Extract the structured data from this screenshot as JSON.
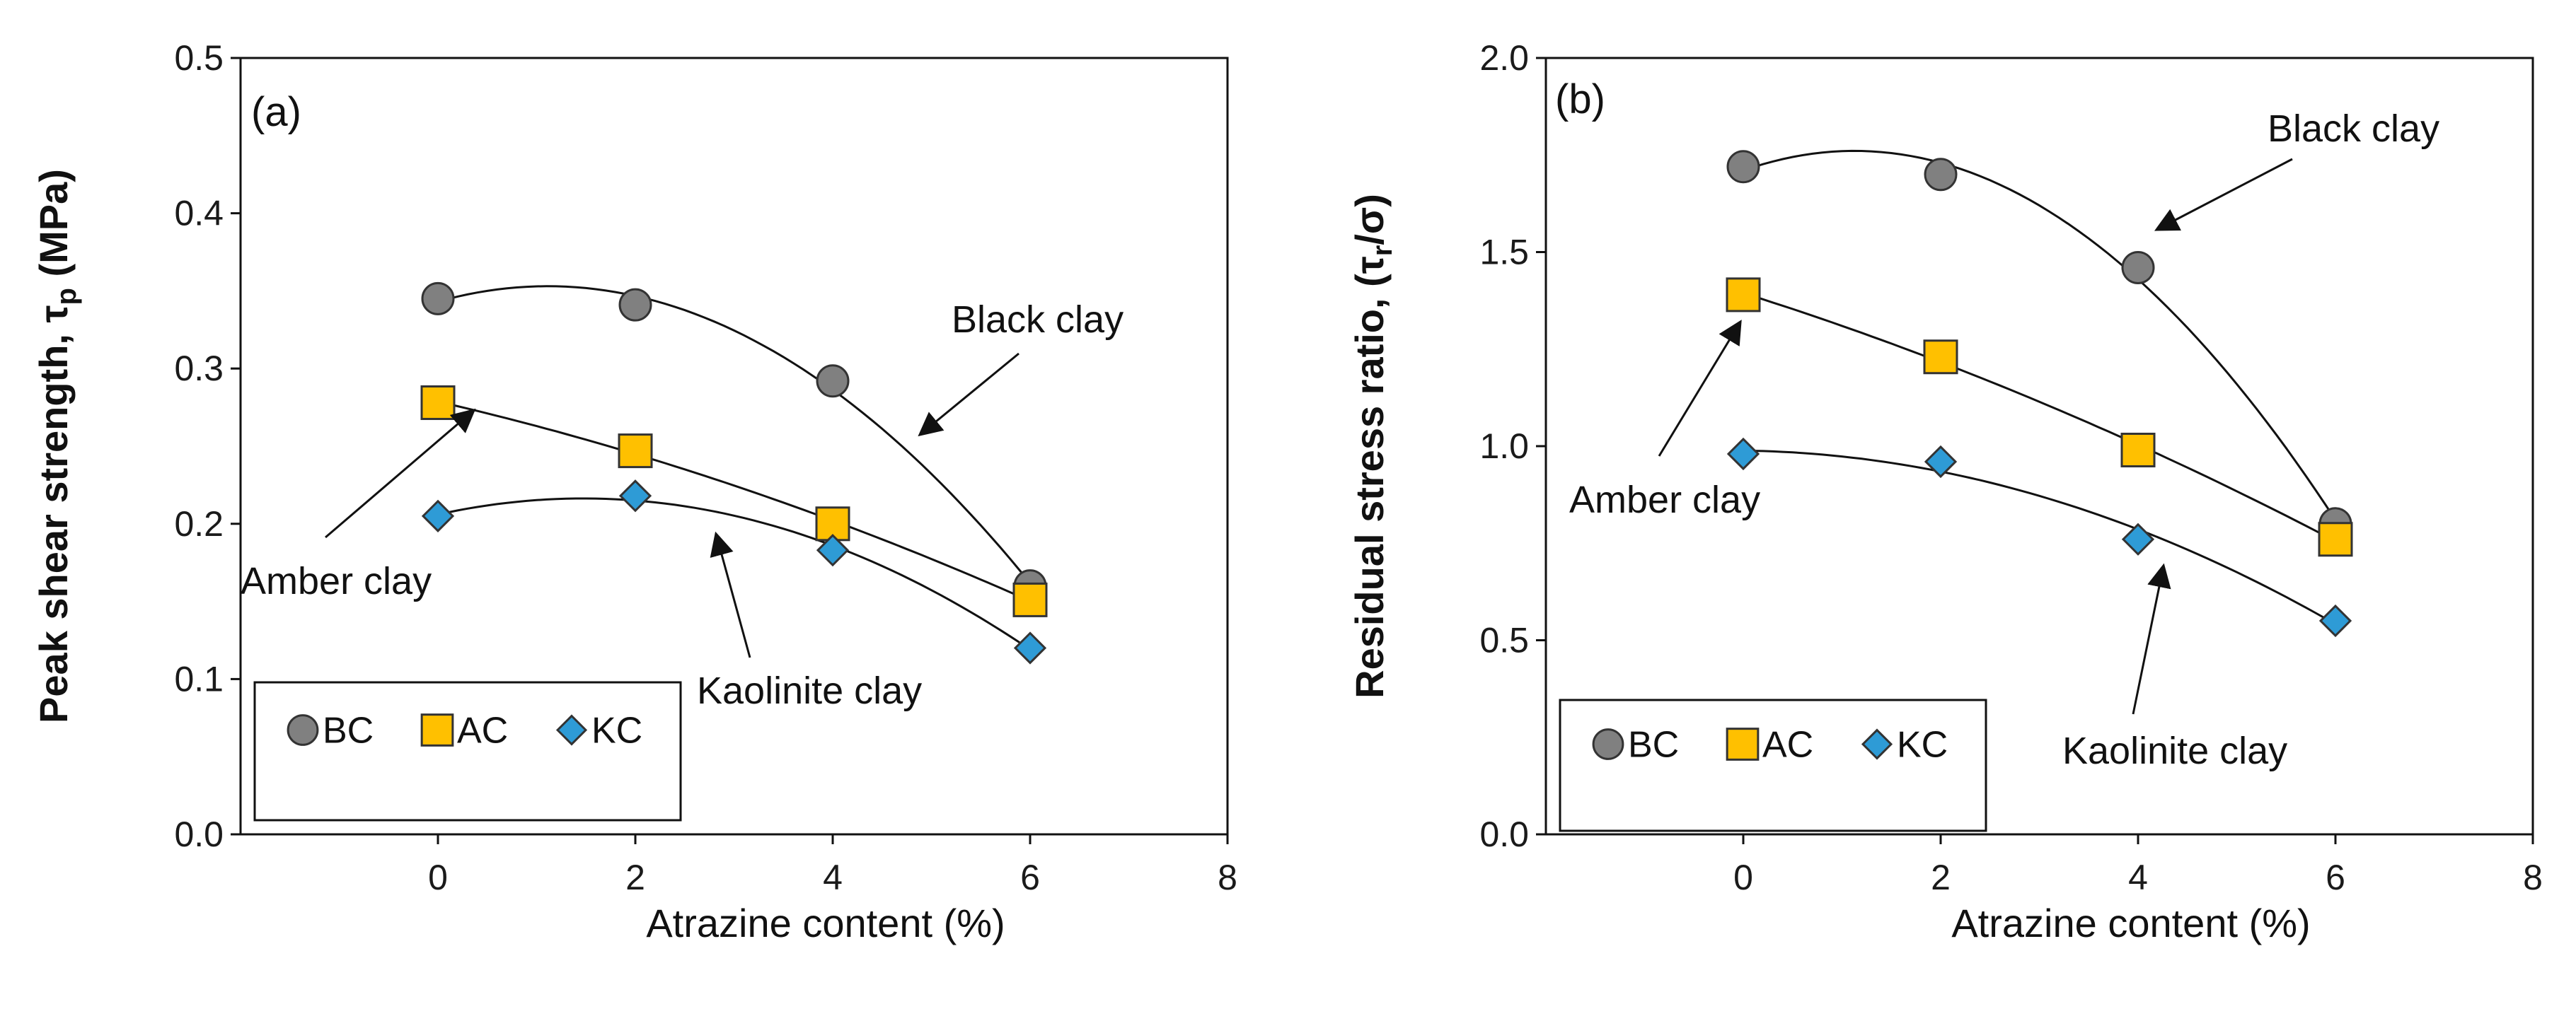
{
  "colors": {
    "BC": "#808080",
    "AC": "#ffc000",
    "KC": "#2e9bd6"
  },
  "chart_data": [
    {
      "type": "scatter",
      "panel_label": "(a)",
      "xlabel": "Atrazine content (%)",
      "ylabel_main": "Peak shear strength, τ",
      "ylabel_sub": "p",
      "ylabel_unit": " (MPa)",
      "xlim": [
        -2,
        8
      ],
      "ylim": [
        0.0,
        0.5
      ],
      "xticks": [
        0,
        2,
        4,
        6,
        8
      ],
      "yticks": [
        "0.0",
        "0.1",
        "0.2",
        "0.3",
        "0.4",
        "0.5"
      ],
      "legend": {
        "position": "bottom-left"
      },
      "series": [
        {
          "name": "BC",
          "marker": "circle",
          "x": [
            0,
            2,
            4,
            6
          ],
          "values": [
            0.345,
            0.341,
            0.292,
            0.16
          ]
        },
        {
          "name": "AC",
          "marker": "square",
          "x": [
            0,
            2,
            4,
            6
          ],
          "values": [
            0.278,
            0.247,
            0.2,
            0.151
          ]
        },
        {
          "name": "KC",
          "marker": "diamond",
          "x": [
            0,
            2,
            4,
            6
          ],
          "values": [
            0.205,
            0.218,
            0.183,
            0.12
          ]
        }
      ],
      "annotations": [
        {
          "text": "Black clay",
          "target": "BC"
        },
        {
          "text": "Amber clay",
          "target": "AC"
        },
        {
          "text": "Kaolinite clay",
          "target": "KC"
        }
      ]
    },
    {
      "type": "scatter",
      "panel_label": "(b)",
      "xlabel": "Atrazine content (%)",
      "ylabel_main": "Residual stress ratio, (τ",
      "ylabel_sub": "r",
      "ylabel_unit": "/σ)",
      "xlim": [
        -2,
        8
      ],
      "ylim": [
        0.0,
        2.0
      ],
      "xticks": [
        0,
        2,
        4,
        6,
        8
      ],
      "yticks": [
        "0.0",
        "0.5",
        "1.0",
        "1.5",
        "2.0"
      ],
      "legend": {
        "position": "bottom-left"
      },
      "series": [
        {
          "name": "BC",
          "marker": "circle",
          "x": [
            0,
            2,
            4,
            6
          ],
          "values": [
            1.72,
            1.7,
            1.46,
            0.8
          ]
        },
        {
          "name": "AC",
          "marker": "square",
          "x": [
            0,
            2,
            4,
            6
          ],
          "values": [
            1.39,
            1.23,
            0.99,
            0.76
          ]
        },
        {
          "name": "KC",
          "marker": "diamond",
          "x": [
            0,
            2,
            4,
            6
          ],
          "values": [
            0.98,
            0.96,
            0.76,
            0.55
          ]
        }
      ],
      "annotations": [
        {
          "text": "Black clay",
          "target": "BC"
        },
        {
          "text": "Amber clay",
          "target": "AC"
        },
        {
          "text": "Kaolinite clay",
          "target": "KC"
        }
      ]
    }
  ]
}
